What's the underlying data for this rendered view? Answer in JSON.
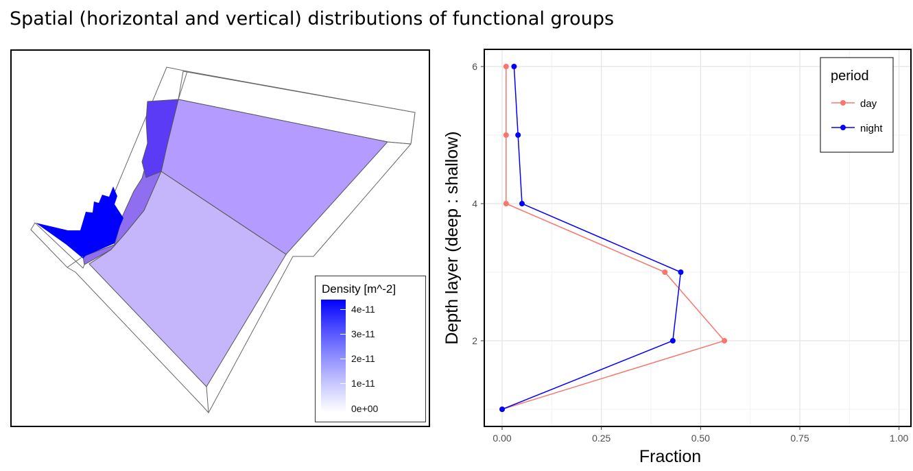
{
  "page": {
    "title": "Spatial (horizontal and vertical) distributions of functional groups"
  },
  "map": {
    "legend_title": "Density [m^-2]",
    "legend_ticks": [
      "4e-11",
      "3e-11",
      "2e-11",
      "1e-11",
      "0e+00"
    ],
    "colors": {
      "high": "#0000ff",
      "medium_high": "#5b3bf5",
      "medium": "#8f6ef0",
      "low": "#b39bff",
      "lowest": "#c5b5fb",
      "outline": "#666666"
    }
  },
  "chart_data": {
    "type": "line",
    "xlabel": "Fraction",
    "ylabel": "Depth layer (deep : shallow)",
    "xlim": [
      -0.045,
      1.03
    ],
    "ylim": [
      0.75,
      6.25
    ],
    "x_ticks": [
      "0.00",
      "0.25",
      "0.50",
      "0.75",
      "1.00"
    ],
    "y_ticks": [
      "2",
      "4",
      "6"
    ],
    "grid": true,
    "legend_title": "period",
    "legend_position": "top-right",
    "series": [
      {
        "name": "day",
        "color": "#f8766d",
        "points": [
          {
            "x": 0.0,
            "y": 1
          },
          {
            "x": 0.56,
            "y": 2
          },
          {
            "x": 0.41,
            "y": 3
          },
          {
            "x": 0.01,
            "y": 4
          },
          {
            "x": 0.01,
            "y": 5
          },
          {
            "x": 0.01,
            "y": 6
          }
        ]
      },
      {
        "name": "night",
        "color": "#0000ff",
        "points": [
          {
            "x": 0.0,
            "y": 1
          },
          {
            "x": 0.43,
            "y": 2
          },
          {
            "x": 0.45,
            "y": 3
          },
          {
            "x": 0.05,
            "y": 4
          },
          {
            "x": 0.04,
            "y": 5
          },
          {
            "x": 0.03,
            "y": 6
          }
        ]
      }
    ]
  }
}
